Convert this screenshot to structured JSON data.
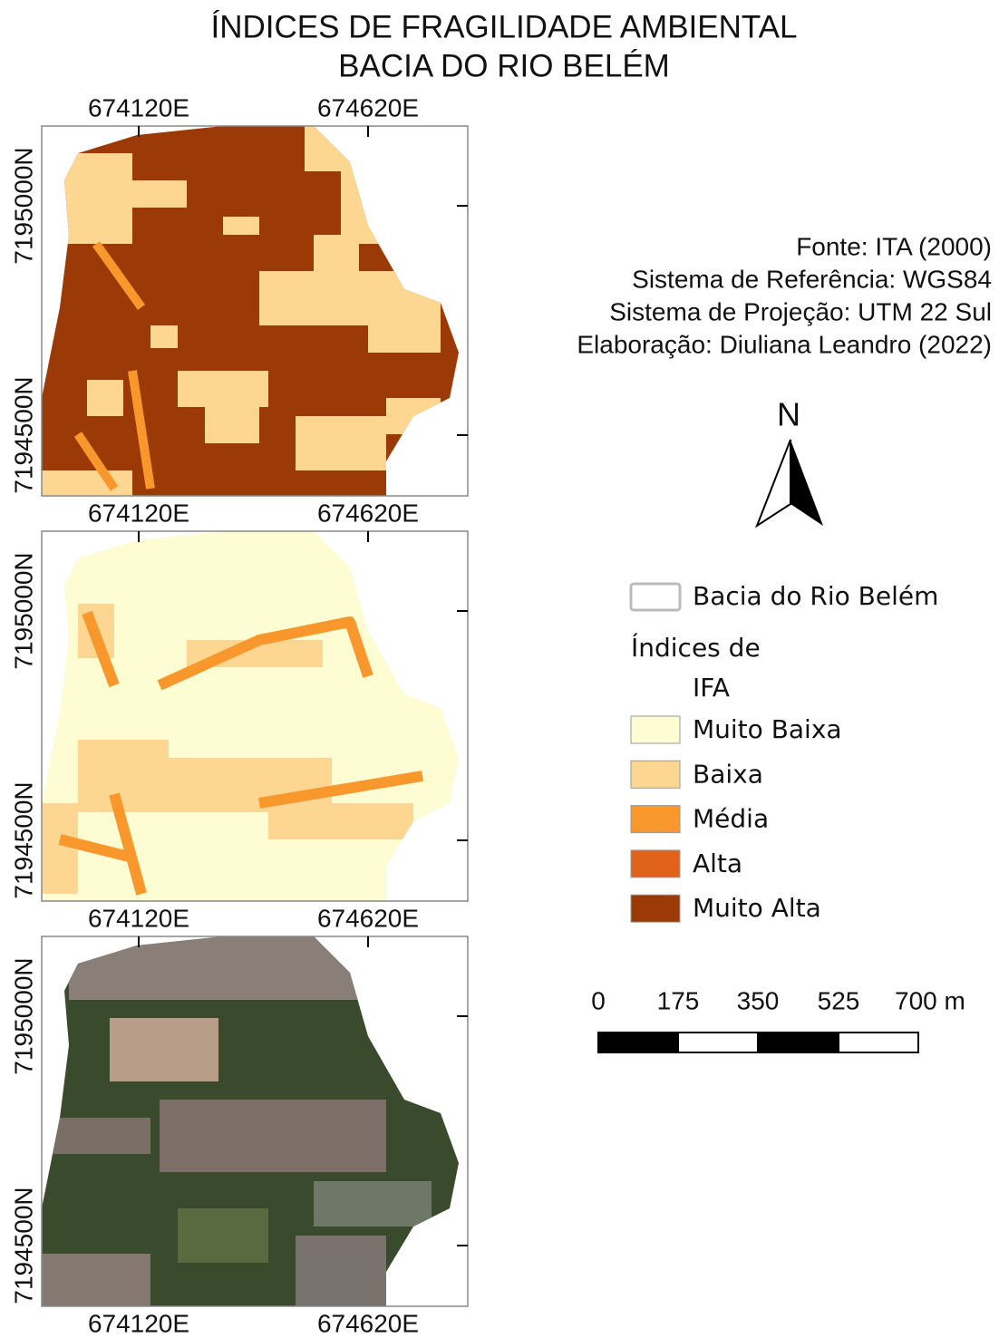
{
  "title": [
    "ÍNDICES DE FRAGILIDADE AMBIENTAL",
    "BACIA DO RIO BELÉM"
  ],
  "map": {
    "x_labels": [
      "674120E",
      "674620E"
    ],
    "y_labels": [
      "7195000N",
      "7194500N"
    ]
  },
  "credits": [
    "Fonte: ITA (2000)",
    "Sistema de Referência: WGS84",
    "Sistema de Projeção: UTM 22 Sul",
    "Elaboração: Diuliana Leandro (2022)"
  ],
  "north": "N",
  "legend": {
    "boundary": "Bacia do Rio Belém",
    "heading": "Índices de",
    "subheading": "IFA",
    "items": [
      {
        "label": "Muito Baixa",
        "color": "#fefcd2"
      },
      {
        "label": "Baixa",
        "color": "#fdd691"
      },
      {
        "label": "Média",
        "color": "#f8982c"
      },
      {
        "label": "Alta",
        "color": "#e0621b"
      },
      {
        "label": "Muito Alta",
        "color": "#9c3a07"
      }
    ]
  },
  "scale_bar": {
    "labels": [
      "0",
      "175",
      "350",
      "525",
      "700 m"
    ]
  }
}
